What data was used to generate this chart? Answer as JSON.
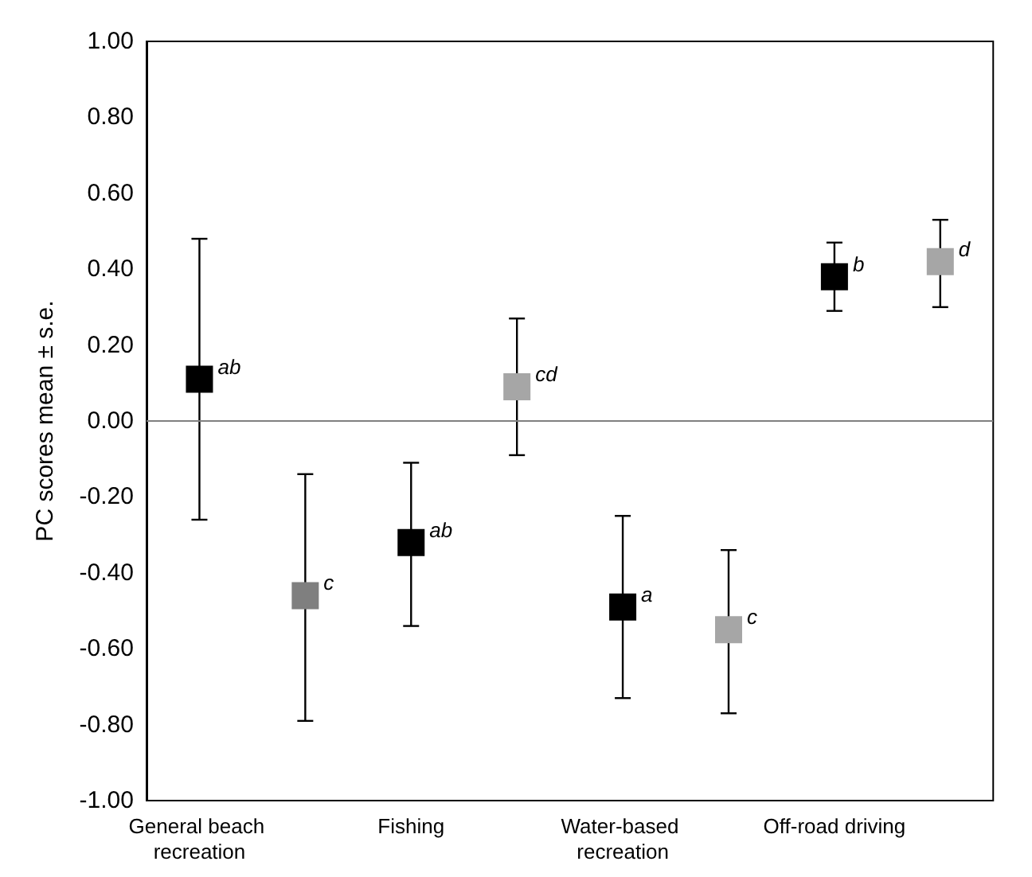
{
  "chart_data": {
    "type": "scatter",
    "ylabel": "PC scores mean ± s.e.",
    "categories": [
      "General beach recreation",
      null,
      "Fishing",
      null,
      "Water-based recreation",
      null,
      "Off-road driving",
      null
    ],
    "series": [
      {
        "color": "#000000",
        "values": [
          0.11,
          null,
          -0.32,
          null,
          -0.49,
          null,
          0.38,
          null
        ],
        "errors": [
          [
            -0.26,
            0.48
          ],
          null,
          [
            -0.54,
            -0.11
          ],
          null,
          [
            -0.73,
            -0.25
          ],
          null,
          [
            0.29,
            0.47
          ],
          null
        ],
        "value_labels": [
          "ab",
          null,
          "ab",
          null,
          "a",
          null,
          "b",
          null
        ]
      },
      {
        "colors": [
          null,
          "#7f7f7f",
          null,
          "#a6a6a6",
          null,
          "#a6a6a6",
          null,
          "#a6a6a6"
        ],
        "values": [
          null,
          -0.46,
          null,
          0.09,
          null,
          -0.55,
          null,
          0.42
        ],
        "errors": [
          null,
          [
            -0.79,
            -0.14
          ],
          null,
          [
            -0.09,
            0.27
          ],
          null,
          [
            -0.77,
            -0.34
          ],
          null,
          [
            0.3,
            0.53
          ]
        ],
        "value_labels": [
          null,
          "c",
          null,
          "cd",
          null,
          "c",
          null,
          "d"
        ]
      }
    ],
    "ylim": [
      -1,
      1
    ],
    "yticks": [
      {
        "value": -1,
        "label": "-1.00"
      },
      {
        "value": -0.8,
        "label": "-0.80"
      },
      {
        "value": -0.6,
        "label": "-0.60"
      },
      {
        "value": -0.4,
        "label": "-0.40"
      },
      {
        "value": -0.2,
        "label": "-0.20"
      },
      {
        "value": 0,
        "label": "0.00"
      },
      {
        "value": 0.2,
        "label": "0.20"
      },
      {
        "value": 0.4,
        "label": "0.40"
      },
      {
        "value": 0.6,
        "label": "0.60"
      },
      {
        "value": 0.8,
        "label": "0.80"
      },
      {
        "value": 1,
        "label": "1.00"
      }
    ],
    "ref_lines": [
      {
        "axis": "y",
        "value": 0,
        "color": "#808080"
      }
    ],
    "grid": false,
    "marker": "square"
  }
}
